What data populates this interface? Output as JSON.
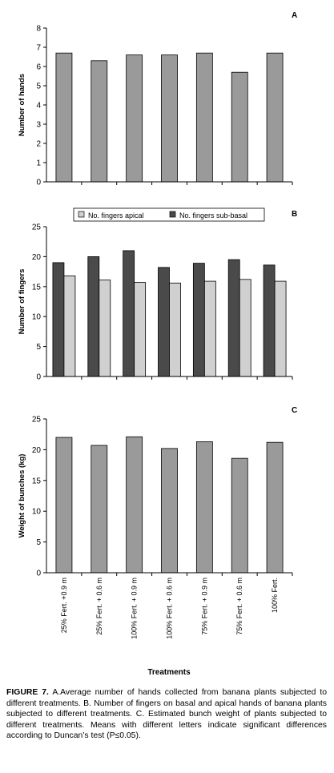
{
  "treatments": [
    "25% Fert. +0.9 m",
    "25% Fert. + 0.6 m",
    "100% Fert. + 0.9 m",
    "100% Fert. + 0.6 m",
    "75% Fert. + 0.9 m",
    "75% Fert. + 0.6 m",
    "100% Fert."
  ],
  "xlabel": "Treatments",
  "caption": {
    "label": "FIGURE 7.",
    "text": "A.Average number of hands collected from banana plants subjected to different treatments. B. Number of fingers on basal and apical hands of banana plants subjected to different treatments. C. Estimated bunch weight of plants subjected to different treatments. Means with different letters indicate significant differences according to Duncan’s test (P≤0.05)."
  },
  "colors": {
    "gray": "#9a9a9a",
    "dark": "#4a4a4a",
    "light": "#d0d0d0"
  },
  "chart_data": [
    {
      "panel": "A",
      "type": "bar",
      "ylabel": "Number of hands",
      "ylim": [
        0,
        8
      ],
      "yticks": [
        0,
        1,
        2,
        3,
        4,
        5,
        6,
        7,
        8
      ],
      "categories": [
        "25% Fert. +0.9 m",
        "25% Fert. + 0.6 m",
        "100% Fert. + 0.9 m",
        "100% Fert. + 0.6 m",
        "75% Fert. + 0.9 m",
        "75% Fert. + 0.6 m",
        "100% Fert."
      ],
      "series": [
        {
          "values": [
            6.7,
            6.3,
            6.6,
            6.6,
            6.7,
            5.7,
            6.7
          ]
        }
      ]
    },
    {
      "panel": "B",
      "type": "bar",
      "ylabel": "Number of fingers",
      "ylim": [
        0,
        25
      ],
      "yticks": [
        0,
        5,
        10,
        15,
        20,
        25
      ],
      "legend_position": "top",
      "categories": [
        "25% Fert. +0.9 m",
        "25% Fert. + 0.6 m",
        "100% Fert. + 0.9 m",
        "100% Fert. + 0.6 m",
        "75% Fert. + 0.9 m",
        "75% Fert. + 0.6 m",
        "100% Fert."
      ],
      "series": [
        {
          "name": "No. fingers sub-basal",
          "values": [
            19.0,
            20.0,
            21.0,
            18.2,
            18.9,
            19.5,
            18.6
          ]
        },
        {
          "name": "No. fingers apical",
          "values": [
            16.8,
            16.1,
            15.7,
            15.6,
            15.9,
            16.2,
            15.9
          ]
        }
      ],
      "legend": [
        "No. fingers apical",
        "No. fingers sub-basal"
      ]
    },
    {
      "panel": "C",
      "type": "bar",
      "ylabel": "Weight of bunches (kg)",
      "ylim": [
        0,
        25
      ],
      "yticks": [
        0,
        5,
        10,
        15,
        20,
        25
      ],
      "categories": [
        "25% Fert. +0.9 m",
        "25% Fert. + 0.6 m",
        "100% Fert. + 0.9 m",
        "100% Fert. + 0.6 m",
        "75% Fert. + 0.9 m",
        "75% Fert. + 0.6 m",
        "100% Fert."
      ],
      "series": [
        {
          "values": [
            22.0,
            20.7,
            22.1,
            20.2,
            21.3,
            18.6,
            21.2
          ]
        }
      ]
    }
  ]
}
